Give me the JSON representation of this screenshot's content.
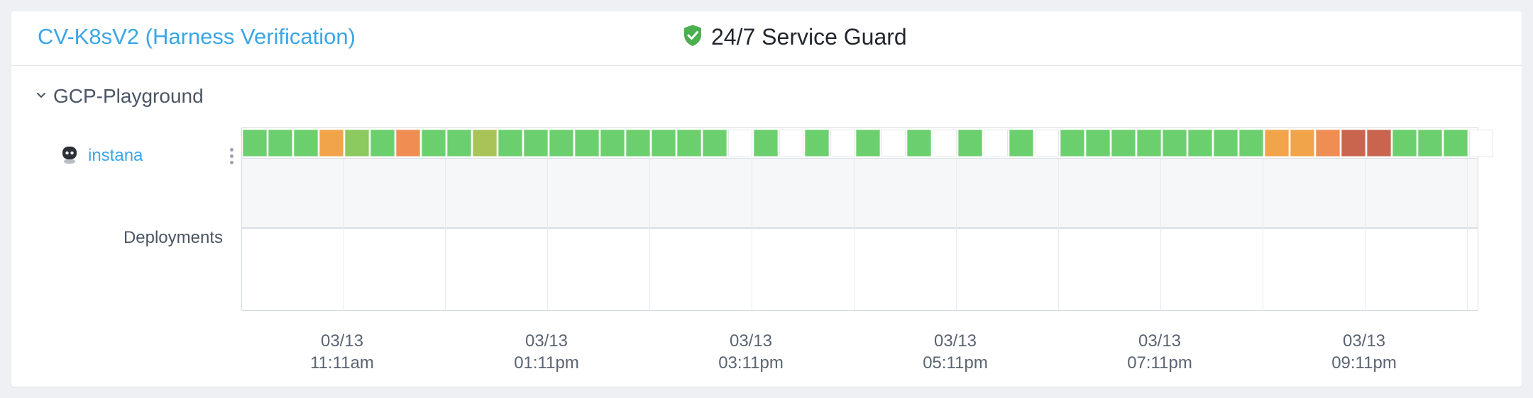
{
  "header": {
    "app_title": "CV-K8sV2 (Harness Verification)",
    "guard_label": "24/7 Service Guard",
    "guard_icon": "shield-check-icon"
  },
  "section": {
    "label": "GCP-Playground"
  },
  "service_row": {
    "service_name": "instana",
    "service_icon": "robot-icon"
  },
  "deployments_label": "Deployments",
  "colors": {
    "green": "#6ccf6e",
    "lime": "#8cc95e",
    "olive": "#a8c457",
    "orange": "#f2a44a",
    "dark_orange": "#f08d53",
    "red": "#c9654f",
    "empty": "#ffffff",
    "link": "#3aa6e6",
    "shield": "#4caf50"
  },
  "timeline": {
    "cells": [
      "green",
      "green",
      "green",
      "orange",
      "lime",
      "green",
      "dark_orange",
      "green",
      "green",
      "olive",
      "green",
      "green",
      "green",
      "green",
      "green",
      "green",
      "green",
      "green",
      "green",
      "empty",
      "green",
      "empty",
      "green",
      "empty",
      "green",
      "empty",
      "green",
      "empty",
      "green",
      "empty",
      "green",
      "empty",
      "green",
      "green",
      "green",
      "green",
      "green",
      "green",
      "green",
      "green",
      "orange",
      "orange",
      "dark_orange",
      "red",
      "red",
      "green",
      "green",
      "green",
      "empty"
    ],
    "ticks": [
      {
        "date": "03/13",
        "time": "11:11am"
      },
      {
        "date": "03/13",
        "time": "01:11pm"
      },
      {
        "date": "03/13",
        "time": "03:11pm"
      },
      {
        "date": "03/13",
        "time": "05:11pm"
      },
      {
        "date": "03/13",
        "time": "07:11pm"
      },
      {
        "date": "03/13",
        "time": "09:11pm"
      }
    ]
  }
}
